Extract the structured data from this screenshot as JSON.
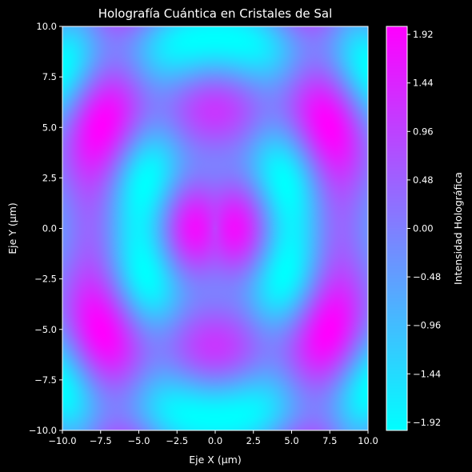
{
  "chart_data": {
    "type": "heatmap",
    "title": "Holografía Cuántica en Cristales de Sal",
    "xlabel": "Eje X (µm)",
    "ylabel": "Eje Y (µm)",
    "xlim": [
      -10,
      10
    ],
    "ylim": [
      -10,
      10
    ],
    "x_ticks": [
      "−10.0",
      "−7.5",
      "−5.0",
      "−2.5",
      "0.0",
      "2.5",
      "5.0",
      "7.5",
      "10.0"
    ],
    "y_ticks": [
      "−10.0",
      "−7.5",
      "−5.0",
      "−2.5",
      "0.0",
      "2.5",
      "5.0",
      "7.5",
      "10.0"
    ],
    "x_tick_values": [
      -10,
      -7.5,
      -5,
      -2.5,
      0,
      2.5,
      5,
      7.5,
      10
    ],
    "y_tick_values": [
      -10,
      -7.5,
      -5,
      -2.5,
      0,
      2.5,
      5,
      7.5,
      10
    ],
    "field": {
      "description_formula": "sin(sqrt(x^2 + 0.25*y^2)) + cos(sqrt(0.25*x^2 + y^2))",
      "min": -2.0,
      "max": 2.0
    },
    "colormap": "cool",
    "colormap_stops": [
      "#00ffff",
      "#ff00ff"
    ],
    "colorbar": {
      "label": "Intensidad Holográfica",
      "range": [
        -2.0,
        2.0
      ],
      "ticks": [
        "−1.92",
        "−1.44",
        "−0.96",
        "−0.48",
        "0.00",
        "0.48",
        "0.96",
        "1.44",
        "1.92"
      ],
      "tick_values": [
        -1.92,
        -1.44,
        -0.96,
        -0.48,
        0.0,
        0.48,
        0.96,
        1.44,
        1.92
      ]
    },
    "background": "#000000",
    "grid": false
  }
}
